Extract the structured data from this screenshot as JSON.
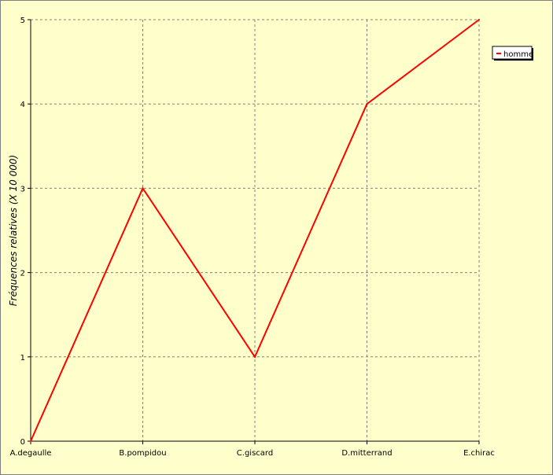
{
  "chart_data": {
    "type": "line",
    "categories": [
      "A.degaulle",
      "B.pompidou",
      "C.giscard",
      "D.mitterrand",
      "E.chirac"
    ],
    "series": [
      {
        "name": "homme",
        "values": [
          0,
          3,
          1,
          4,
          5
        ],
        "color": "#ff0000"
      }
    ],
    "ylabel": "Fréquences relatives (X 10 000)",
    "ylim": [
      0,
      5
    ],
    "yticks": [
      0,
      1,
      2,
      3,
      4,
      5
    ],
    "grid": true,
    "legend_position": "top-right",
    "colors": {
      "background": "#ffffcc",
      "grid": "#808080",
      "axis": "#000000"
    }
  }
}
